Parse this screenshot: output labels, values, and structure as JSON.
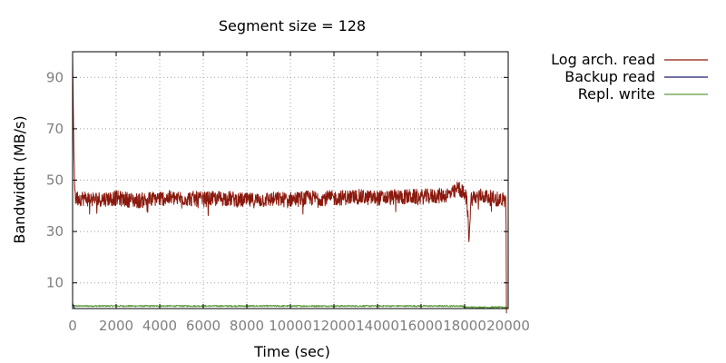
{
  "chart_data": {
    "type": "line",
    "title": "Segment size = 128",
    "xlabel": "Time (sec)",
    "ylabel": "Bandwidth (MB/s)",
    "xlim": [
      0,
      20000
    ],
    "ylim": [
      0,
      100
    ],
    "x_ticks": [
      0,
      2000,
      4000,
      6000,
      8000,
      10000,
      12000,
      14000,
      16000,
      18000,
      20000
    ],
    "x_tick_labels": [
      "0",
      "2000",
      "4000",
      "6000",
      "8000",
      "10000",
      "12000",
      "14000",
      "16000",
      "18000",
      "20000"
    ],
    "y_ticks": [
      10,
      30,
      50,
      70,
      90
    ],
    "y_tick_labels": [
      "10",
      "30",
      "50",
      "70",
      "90"
    ],
    "grid": true,
    "legend_position": "top-right, outside plot",
    "series": [
      {
        "name": "Log arch. read",
        "color": "#8b1a0e",
        "points": [
          [
            0,
            98
          ],
          [
            60,
            60
          ],
          [
            120,
            43
          ],
          [
            500,
            43
          ],
          [
            1000,
            42.5
          ],
          [
            2000,
            43
          ],
          [
            3000,
            42
          ],
          [
            4000,
            43
          ],
          [
            5000,
            43
          ],
          [
            6000,
            42.5
          ],
          [
            7000,
            43
          ],
          [
            8000,
            42
          ],
          [
            9000,
            42.5
          ],
          [
            10000,
            42.5
          ],
          [
            11000,
            43
          ],
          [
            12000,
            43
          ],
          [
            13000,
            43.5
          ],
          [
            14000,
            43
          ],
          [
            15000,
            43.5
          ],
          [
            16000,
            43.5
          ],
          [
            17000,
            44
          ],
          [
            17500,
            45
          ],
          [
            17700,
            47
          ],
          [
            17850,
            46
          ],
          [
            18000,
            44
          ],
          [
            18100,
            43
          ],
          [
            18200,
            28
          ],
          [
            18300,
            43
          ],
          [
            18800,
            44
          ],
          [
            19200,
            43
          ],
          [
            19700,
            42.5
          ],
          [
            19900,
            42
          ],
          [
            19920,
            0
          ]
        ],
        "noise_amplitude": 3
      },
      {
        "name": "Backup read",
        "color": "#1a1a6e",
        "points": [
          [
            0,
            2
          ],
          [
            100,
            0
          ],
          [
            19900,
            0
          ]
        ],
        "noise_amplitude": 0
      },
      {
        "name": "Repl. write",
        "color": "#5a9a3a",
        "points": [
          [
            0,
            1
          ],
          [
            17900,
            1
          ],
          [
            18000,
            0.5
          ],
          [
            19950,
            0.5
          ]
        ],
        "noise_amplitude": 0.3
      }
    ]
  }
}
